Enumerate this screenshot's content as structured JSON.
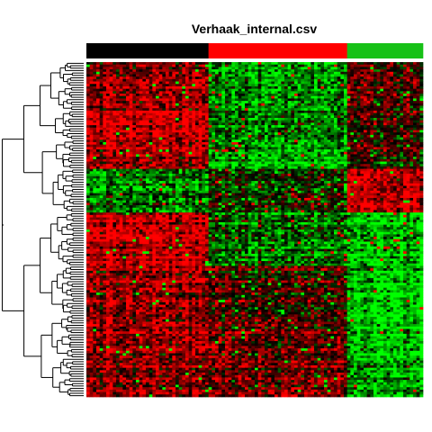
{
  "chart_data": {
    "type": "heatmap",
    "title": "Verhaak_internal.csv",
    "xlabel": "",
    "ylabel": "",
    "grid": false,
    "colormap": {
      "low": "#00ff00",
      "mid": "#000000",
      "high": "#ff0000"
    },
    "column_groups": [
      {
        "color": "#000000",
        "columns": 37
      },
      {
        "color": "#ff0000",
        "columns": 42
      },
      {
        "color": "#17c117",
        "columns": 23
      }
    ],
    "row_clusters": [
      {
        "rows": 20,
        "pattern": [
          0.55,
          -0.5,
          0.35
        ]
      },
      {
        "rows": 12,
        "pattern": [
          0.75,
          -0.45,
          0.15
        ]
      },
      {
        "rows": 12,
        "pattern": [
          0.6,
          -0.7,
          0.1
        ]
      },
      {
        "rows": 18,
        "pattern": [
          -0.45,
          -0.05,
          0.8
        ]
      },
      {
        "rows": 22,
        "pattern": [
          0.75,
          -0.35,
          -0.7
        ]
      },
      {
        "rows": 20,
        "pattern": [
          0.5,
          0.15,
          -0.75
        ]
      },
      {
        "rows": 18,
        "pattern": [
          0.6,
          0.35,
          -0.7
        ]
      },
      {
        "rows": 16,
        "pattern": [
          0.5,
          0.45,
          -0.5
        ]
      }
    ],
    "dendrogram": "hierarchical clustering of rows (left)"
  }
}
